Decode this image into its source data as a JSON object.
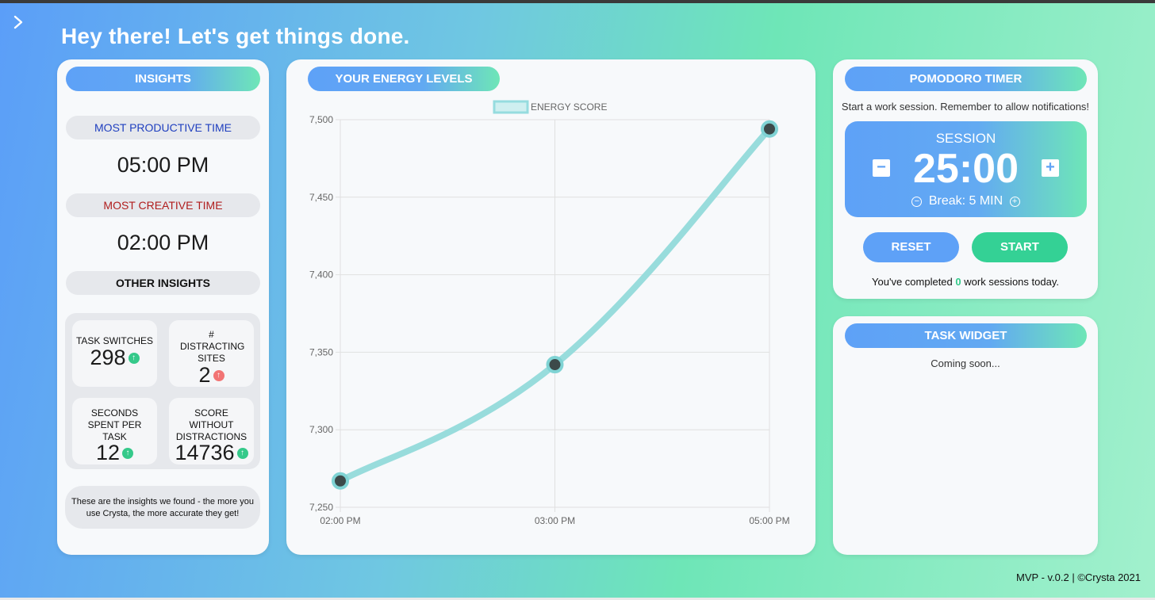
{
  "page": {
    "title": "Hey there! Let's get things done."
  },
  "insights": {
    "header": "INSIGHTS",
    "most_productive_label": "MOST PRODUCTIVE TIME",
    "most_productive_value": "05:00 PM",
    "most_creative_label": "MOST CREATIVE TIME",
    "most_creative_value": "02:00 PM",
    "other_label": "OTHER INSIGHTS",
    "stats": [
      {
        "label": "TASK SWITCHES",
        "value": "298",
        "trend": "up"
      },
      {
        "label": "# DISTRACTING SITES",
        "value": "2",
        "trend": "down"
      },
      {
        "label": "SECONDS SPENT PER TASK",
        "value": "12",
        "trend": "up"
      },
      {
        "label": "SCORE WITHOUT DISTRACTIONS",
        "value": "14736",
        "trend": "up"
      }
    ],
    "note": "These are the insights we found - the more you use Crysta, the more accurate they get!"
  },
  "energy": {
    "header": "YOUR ENERGY LEVELS"
  },
  "chart_data": {
    "type": "line",
    "x": [
      "02:00 PM",
      "03:00 PM",
      "05:00 PM"
    ],
    "series": [
      {
        "name": "ENERGY SCORE",
        "values": [
          7267,
          7342,
          7494
        ]
      }
    ],
    "yticks": [
      "7,250",
      "7,300",
      "7,350",
      "7,400",
      "7,450",
      "7,500"
    ],
    "ylim": [
      7250,
      7500
    ],
    "grid": true,
    "legend": "top-center"
  },
  "pomodoro": {
    "header": "POMODORO TIMER",
    "subtitle": "Start a work session. Remember to allow notifications!",
    "session_label": "SESSION",
    "time": "25:00",
    "break_label": "Break: 5 MIN",
    "reset_label": "RESET",
    "start_label": "START",
    "completed_prefix": "You've completed",
    "completed_count": "0",
    "completed_suffix": "work sessions today.",
    "colors": {
      "reset": "#5ea1f7",
      "start": "#34d195",
      "count": "#34c98a"
    }
  },
  "task_widget": {
    "header": "TASK WIDGET",
    "body": "Coming soon..."
  },
  "footer": {
    "text": "MVP - v.0.2 | ©Crysta 2021"
  },
  "icons": {
    "sidebar_toggle": "chevron-right-icon",
    "trend_up": "arrow-up-icon",
    "trend_down": "arrow-down-icon"
  }
}
